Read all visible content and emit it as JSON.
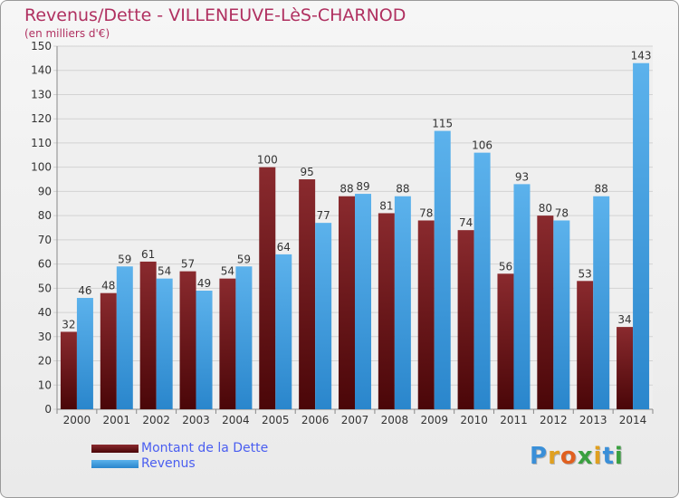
{
  "title": "Revenus/Dette - VILLENEUVE-LèS-CHARNOD",
  "subtitle": "(en milliers d'€)",
  "logo_text": "Proxiti",
  "colors": {
    "dette": "#7a1a1e",
    "revenus": "#3a9ee0",
    "title": "#b03060",
    "legend_text": "#4a5ef0"
  },
  "chart_data": {
    "type": "bar",
    "title": "Revenus/Dette - VILLENEUVE-LèS-CHARNOD",
    "subtitle": "(en milliers d'€)",
    "categories": [
      "2000",
      "2001",
      "2002",
      "2003",
      "2004",
      "2005",
      "2006",
      "2007",
      "2008",
      "2009",
      "2010",
      "2011",
      "2012",
      "2013",
      "2014"
    ],
    "series": [
      {
        "name": "Montant de la Dette",
        "values": [
          32,
          48,
          61,
          57,
          54,
          100,
          95,
          88,
          81,
          78,
          74,
          56,
          80,
          53,
          34
        ]
      },
      {
        "name": "Revenus",
        "values": [
          46,
          59,
          54,
          49,
          59,
          64,
          77,
          89,
          88,
          115,
          106,
          93,
          78,
          88,
          143
        ]
      }
    ],
    "ylim": [
      0,
      150
    ],
    "yticks": [
      0,
      10,
      20,
      30,
      40,
      50,
      60,
      70,
      80,
      90,
      100,
      110,
      120,
      130,
      140,
      150
    ],
    "grid": true,
    "legend": "bottom-left"
  }
}
